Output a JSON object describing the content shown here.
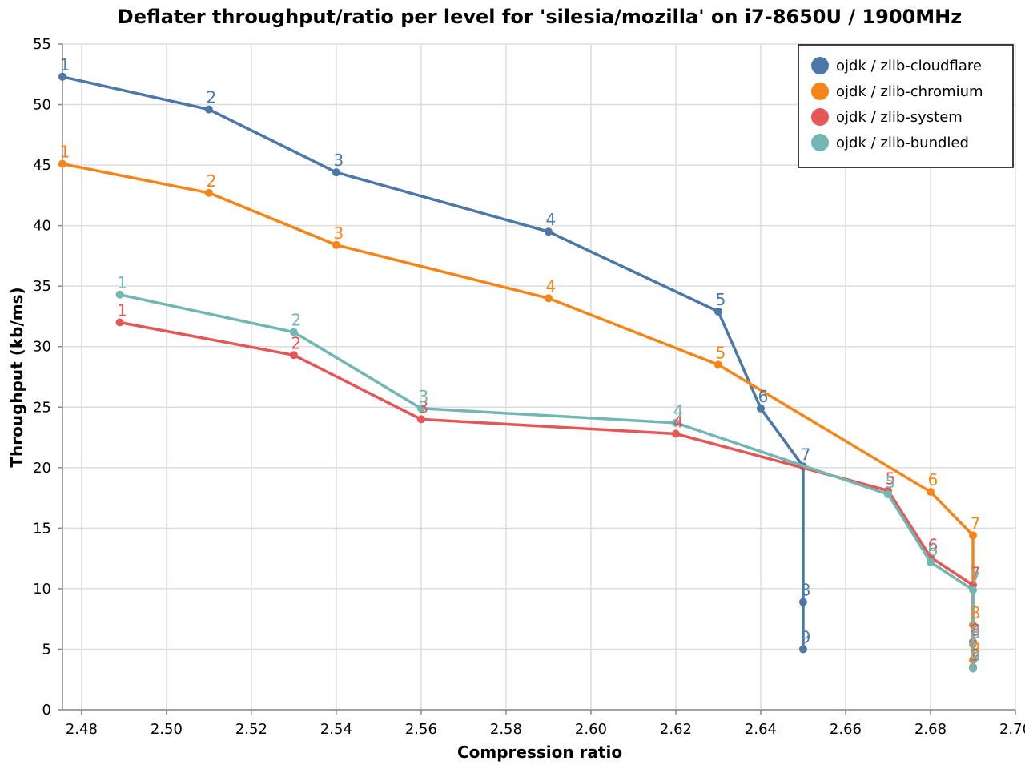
{
  "chart_data": {
    "type": "line",
    "title": "Deflater throughput/ratio per level for 'silesia/mozilla' on i7-8650U / 1900MHz",
    "xlabel": "Compression ratio",
    "ylabel": "Throughput (kb/ms)",
    "xlim": [
      2.4755,
      2.7
    ],
    "ylim": [
      0,
      55
    ],
    "xticks": [
      "2.48",
      "2.50",
      "2.52",
      "2.54",
      "2.56",
      "2.58",
      "2.60",
      "2.62",
      "2.64",
      "2.66",
      "2.68",
      "2.70"
    ],
    "xtick_values": [
      2.48,
      2.5,
      2.52,
      2.54,
      2.56,
      2.58,
      2.6,
      2.62,
      2.64,
      2.66,
      2.68,
      2.7
    ],
    "yticks": [
      "0",
      "5",
      "10",
      "15",
      "20",
      "25",
      "30",
      "35",
      "40",
      "45",
      "50",
      "55"
    ],
    "ytick_values": [
      0,
      5,
      10,
      15,
      20,
      25,
      30,
      35,
      40,
      45,
      50,
      55
    ],
    "grid": true,
    "legend_position": "top-right",
    "series": [
      {
        "name": "ojdk / zlib-cloudflare",
        "color": "#4c78a8",
        "points": [
          {
            "x": 2.4755,
            "y": 52.3,
            "label": "1"
          },
          {
            "x": 2.51,
            "y": 49.6,
            "label": "2"
          },
          {
            "x": 2.54,
            "y": 44.4,
            "label": "3"
          },
          {
            "x": 2.59,
            "y": 39.5,
            "label": "4"
          },
          {
            "x": 2.63,
            "y": 32.9,
            "label": "5"
          },
          {
            "x": 2.64,
            "y": 24.9,
            "label": "6"
          },
          {
            "x": 2.65,
            "y": 20.1,
            "label": "7"
          },
          {
            "x": 2.65,
            "y": 8.9,
            "label": "8"
          },
          {
            "x": 2.65,
            "y": 5.0,
            "label": "9"
          }
        ]
      },
      {
        "name": "ojdk / zlib-chromium",
        "color": "#f58518",
        "points": [
          {
            "x": 2.4755,
            "y": 45.1,
            "label": "1"
          },
          {
            "x": 2.51,
            "y": 42.7,
            "label": "2"
          },
          {
            "x": 2.54,
            "y": 38.4,
            "label": "3"
          },
          {
            "x": 2.59,
            "y": 34.0,
            "label": "4"
          },
          {
            "x": 2.63,
            "y": 28.5,
            "label": "5"
          },
          {
            "x": 2.68,
            "y": 18.0,
            "label": "6"
          },
          {
            "x": 2.69,
            "y": 14.4,
            "label": "7"
          },
          {
            "x": 2.69,
            "y": 7.0,
            "label": "8"
          },
          {
            "x": 2.69,
            "y": 4.1,
            "label": "9"
          }
        ]
      },
      {
        "name": "ojdk / zlib-system",
        "color": "#e45756",
        "points": [
          {
            "x": 2.489,
            "y": 32.0,
            "label": "1"
          },
          {
            "x": 2.53,
            "y": 29.3,
            "label": "2"
          },
          {
            "x": 2.56,
            "y": 24.0,
            "label": "3"
          },
          {
            "x": 2.62,
            "y": 22.8,
            "label": "4"
          },
          {
            "x": 2.67,
            "y": 18.1,
            "label": "5"
          },
          {
            "x": 2.68,
            "y": 12.6,
            "label": "6"
          },
          {
            "x": 2.69,
            "y": 10.3,
            "label": "7"
          },
          {
            "x": 2.69,
            "y": 5.6,
            "label": "8"
          },
          {
            "x": 2.69,
            "y": 3.5,
            "label": "9"
          }
        ]
      },
      {
        "name": "ojdk / zlib-bundled",
        "color": "#72b7b2",
        "points": [
          {
            "x": 2.489,
            "y": 34.3,
            "label": "1"
          },
          {
            "x": 2.53,
            "y": 31.2,
            "label": "2"
          },
          {
            "x": 2.56,
            "y": 24.9,
            "label": "3"
          },
          {
            "x": 2.62,
            "y": 23.7,
            "label": "4"
          },
          {
            "x": 2.67,
            "y": 17.8,
            "label": "5"
          },
          {
            "x": 2.68,
            "y": 12.2,
            "label": "6"
          },
          {
            "x": 2.69,
            "y": 9.9,
            "label": "7"
          },
          {
            "x": 2.69,
            "y": 5.4,
            "label": "8"
          },
          {
            "x": 2.69,
            "y": 3.4,
            "label": "9"
          }
        ]
      }
    ]
  }
}
